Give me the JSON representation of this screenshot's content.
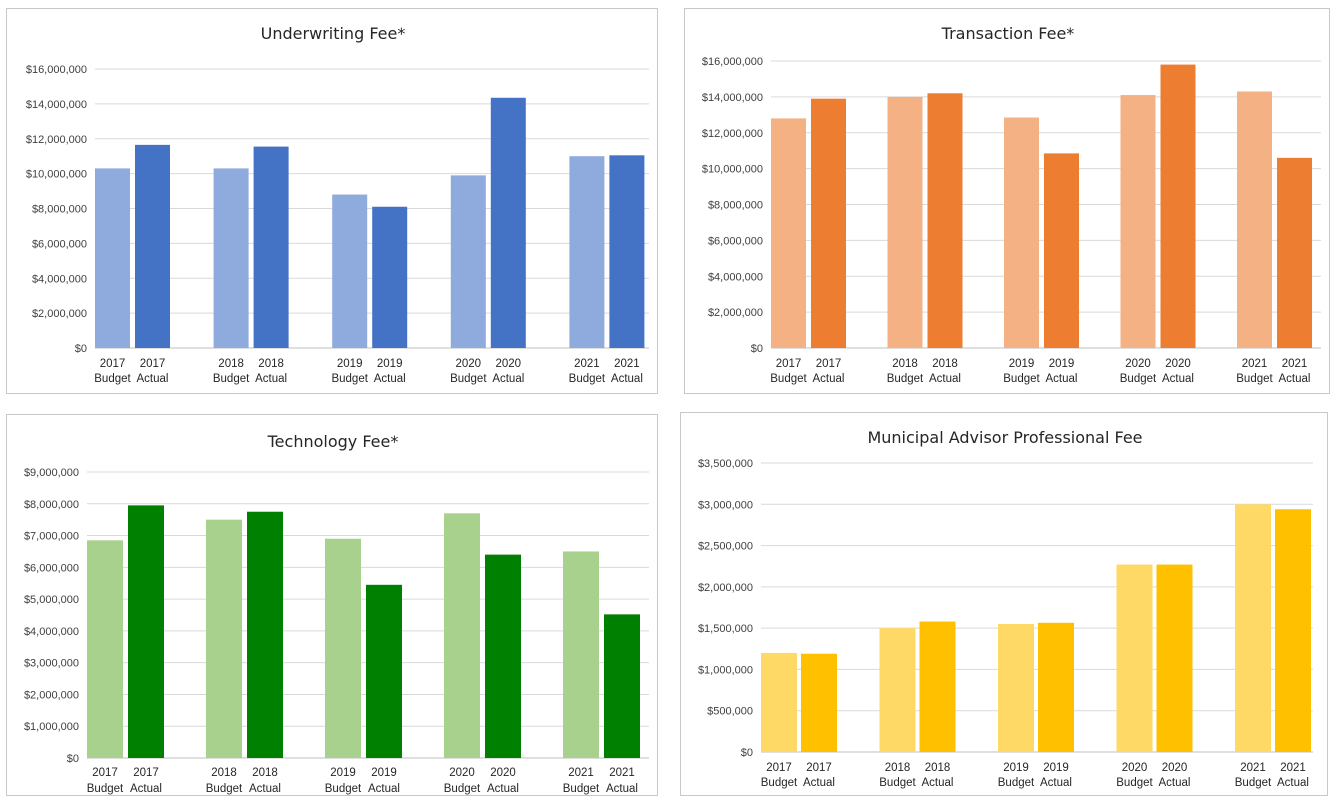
{
  "chart_data": [
    {
      "type": "bar",
      "title": "Underwriting Fee*",
      "categories": [
        [
          "2017",
          "Budget"
        ],
        [
          "2017",
          "Actual"
        ],
        [
          "2018",
          "Budget"
        ],
        [
          "2018",
          "Actual"
        ],
        [
          "2019",
          "Budget"
        ],
        [
          "2019",
          "Actual"
        ],
        [
          "2020",
          "Budget"
        ],
        [
          "2020",
          "Actual"
        ],
        [
          "2021",
          "Budget"
        ],
        [
          "2021",
          "Actual"
        ]
      ],
      "values": [
        10300000,
        11650000,
        10300000,
        11550000,
        8800000,
        8100000,
        9900000,
        14350000,
        11000000,
        11050000
      ],
      "colors": [
        "#8faadc",
        "#4472c4"
      ],
      "ylim": [
        0,
        16000000
      ],
      "yticks": [
        0,
        2000000,
        4000000,
        6000000,
        8000000,
        10000000,
        12000000,
        14000000,
        16000000
      ],
      "ytick_labels": [
        "$0",
        "$2,000,000",
        "$4,000,000",
        "$6,000,000",
        "$8,000,000",
        "$10,000,000",
        "$12,000,000",
        "$14,000,000",
        "$16,000,000"
      ],
      "grid": true
    },
    {
      "type": "bar",
      "title": "Transaction Fee*",
      "categories": [
        [
          "2017",
          "Budget"
        ],
        [
          "2017",
          "Actual"
        ],
        [
          "2018",
          "Budget"
        ],
        [
          "2018",
          "Actual"
        ],
        [
          "2019",
          "Budget"
        ],
        [
          "2019",
          "Actual"
        ],
        [
          "2020",
          "Budget"
        ],
        [
          "2020",
          "Actual"
        ],
        [
          "2021",
          "Budget"
        ],
        [
          "2021",
          "Actual"
        ]
      ],
      "values": [
        12800000,
        13900000,
        14000000,
        14200000,
        12850000,
        10850000,
        14100000,
        15800000,
        14300000,
        10600000
      ],
      "colors": [
        "#f4b183",
        "#ed7d31"
      ],
      "ylim": [
        0,
        16000000
      ],
      "yticks": [
        0,
        2000000,
        4000000,
        6000000,
        8000000,
        10000000,
        12000000,
        14000000,
        16000000
      ],
      "ytick_labels": [
        "$0",
        "$2,000,000",
        "$4,000,000",
        "$6,000,000",
        "$8,000,000",
        "$10,000,000",
        "$12,000,000",
        "$14,000,000",
        "$16,000,000"
      ],
      "grid": true
    },
    {
      "type": "bar",
      "title": "Technology Fee*",
      "categories": [
        [
          "2017",
          "Budget"
        ],
        [
          "2017",
          "Actual"
        ],
        [
          "2018",
          "Budget"
        ],
        [
          "2018",
          "Actual"
        ],
        [
          "2019",
          "Budget"
        ],
        [
          "2019",
          "Actual"
        ],
        [
          "2020",
          "Budget"
        ],
        [
          "2020",
          "Actual"
        ],
        [
          "2021",
          "Budget"
        ],
        [
          "2021",
          "Actual"
        ]
      ],
      "values": [
        6850000,
        7950000,
        7500000,
        7750000,
        6900000,
        5450000,
        7700000,
        6400000,
        6500000,
        4520000
      ],
      "colors": [
        "#a9d18e",
        "#008000"
      ],
      "ylim": [
        0,
        9000000
      ],
      "yticks": [
        0,
        1000000,
        2000000,
        3000000,
        4000000,
        5000000,
        6000000,
        7000000,
        8000000,
        9000000
      ],
      "ytick_labels": [
        "$0",
        "$1,000,000",
        "$2,000,000",
        "$3,000,000",
        "$4,000,000",
        "$5,000,000",
        "$6,000,000",
        "$7,000,000",
        "$8,000,000",
        "$9,000,000"
      ],
      "grid": true
    },
    {
      "type": "bar",
      "title": "Municipal Advisor Professional Fee",
      "categories": [
        [
          "2017",
          "Budget"
        ],
        [
          "2017",
          "Actual"
        ],
        [
          "2018",
          "Budget"
        ],
        [
          "2018",
          "Actual"
        ],
        [
          "2019",
          "Budget"
        ],
        [
          "2019",
          "Actual"
        ],
        [
          "2020",
          "Budget"
        ],
        [
          "2020",
          "Actual"
        ],
        [
          "2021",
          "Budget"
        ],
        [
          "2021",
          "Actual"
        ]
      ],
      "values": [
        1200000,
        1190000,
        1500000,
        1580000,
        1550000,
        1565000,
        2270000,
        2270000,
        3000000,
        2940000
      ],
      "colors": [
        "#ffd966",
        "#ffc000"
      ],
      "ylim": [
        0,
        3500000
      ],
      "yticks": [
        0,
        500000,
        1000000,
        1500000,
        2000000,
        2500000,
        3000000,
        3500000
      ],
      "ytick_labels": [
        "$0",
        "$500,000",
        "$1,000,000",
        "$1,500,000",
        "$2,000,000",
        "$2,500,000",
        "$3,000,000",
        "$3,500,000"
      ],
      "grid": true
    }
  ]
}
